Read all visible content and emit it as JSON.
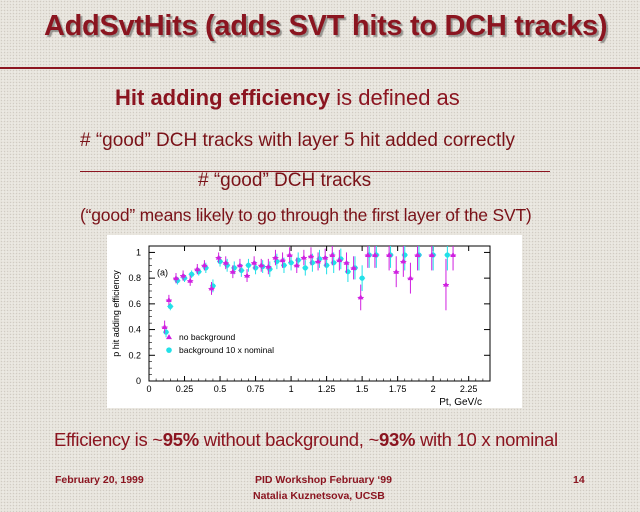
{
  "slide": {
    "title": "AddSvtHits (adds SVT hits to DCH tracks)",
    "heading_bold": "Hit adding efficiency",
    "heading_rest": " is defined as",
    "numerator": "# “good” DCH tracks with layer 5 hit added correctly",
    "denominator": "# “good” DCH tracks",
    "note": "(“good” means likely to go through the first layer of the SVT)",
    "summary_prefix": "Efficiency is ~",
    "summary_val1": "95%",
    "summary_mid": " without background, ~",
    "summary_val2": "93%",
    "summary_suffix": " with 10 x nominal"
  },
  "footer": {
    "date": "February 20, 1999",
    "workshop": "PID Workshop February ‘99",
    "author": "Natalia Kuznetsova, UCSB",
    "page": "14"
  },
  "chart_data": {
    "type": "scatter",
    "panel_label": "(a)",
    "xlabel": "Pt, GeV/c",
    "ylabel": "p hit adding efficiency",
    "xlim": [
      0,
      2.4
    ],
    "ylim": [
      0,
      1.05
    ],
    "x_ticks": [
      "0",
      "0.25",
      "0.5",
      "0.75",
      "1",
      "1.25",
      "1.5",
      "1.75",
      "2",
      "2.25"
    ],
    "y_ticks": [
      "0",
      "0.2",
      "0.4",
      "0.6",
      "0.8",
      "1"
    ],
    "legend_position": "lower-left",
    "series": [
      {
        "name": "background 10 x nominal",
        "color": "#22e0e8",
        "marker": "circle",
        "x": [
          0.12,
          0.15,
          0.2,
          0.25,
          0.3,
          0.35,
          0.4,
          0.45,
          0.5,
          0.55,
          0.6,
          0.65,
          0.7,
          0.75,
          0.8,
          0.85,
          0.9,
          0.95,
          1.0,
          1.05,
          1.1,
          1.15,
          1.2,
          1.25,
          1.3,
          1.35,
          1.4,
          1.45,
          1.5,
          1.55,
          1.6,
          1.7,
          1.8,
          1.9,
          2.0,
          2.1
        ],
        "y": [
          0.38,
          0.58,
          0.78,
          0.8,
          0.83,
          0.85,
          0.88,
          0.74,
          0.93,
          0.9,
          0.88,
          0.86,
          0.9,
          0.88,
          0.89,
          0.87,
          0.93,
          0.9,
          0.92,
          0.94,
          0.88,
          0.92,
          0.95,
          0.9,
          0.92,
          0.95,
          0.85,
          0.88,
          0.8,
          0.98,
          0.98,
          0.98,
          0.98,
          0.98,
          0.98,
          0.98
        ],
        "yerr": [
          0.04,
          0.03,
          0.03,
          0.03,
          0.03,
          0.03,
          0.04,
          0.05,
          0.04,
          0.05,
          0.05,
          0.05,
          0.05,
          0.05,
          0.05,
          0.06,
          0.06,
          0.06,
          0.06,
          0.06,
          0.06,
          0.07,
          0.07,
          0.07,
          0.08,
          0.08,
          0.08,
          0.09,
          0.1,
          0.1,
          0.1,
          0.1,
          0.12,
          0.12,
          0.12,
          0.12
        ]
      },
      {
        "name": "no background",
        "color": "#d020e0",
        "marker": "triangle",
        "x": [
          0.11,
          0.14,
          0.19,
          0.24,
          0.29,
          0.34,
          0.39,
          0.44,
          0.49,
          0.54,
          0.59,
          0.64,
          0.69,
          0.74,
          0.79,
          0.84,
          0.89,
          0.94,
          0.99,
          1.04,
          1.09,
          1.14,
          1.19,
          1.24,
          1.29,
          1.34,
          1.39,
          1.44,
          1.49,
          1.54,
          1.59,
          1.69,
          1.74,
          1.79,
          1.84,
          1.89,
          1.99,
          2.09,
          2.14
        ],
        "y": [
          0.42,
          0.63,
          0.8,
          0.82,
          0.78,
          0.87,
          0.9,
          0.72,
          0.96,
          0.92,
          0.85,
          0.9,
          0.82,
          0.92,
          0.9,
          0.89,
          0.96,
          0.94,
          0.98,
          0.9,
          0.96,
          0.97,
          0.93,
          0.96,
          0.98,
          0.94,
          0.92,
          0.88,
          0.65,
          0.98,
          0.98,
          0.98,
          0.85,
          0.93,
          0.8,
          0.98,
          0.98,
          0.75,
          0.98
        ],
        "yerr": [
          0.05,
          0.04,
          0.04,
          0.04,
          0.04,
          0.04,
          0.04,
          0.05,
          0.04,
          0.05,
          0.05,
          0.05,
          0.05,
          0.05,
          0.05,
          0.06,
          0.06,
          0.06,
          0.06,
          0.06,
          0.06,
          0.07,
          0.07,
          0.07,
          0.08,
          0.08,
          0.08,
          0.09,
          0.1,
          0.1,
          0.1,
          0.12,
          0.12,
          0.12,
          0.12,
          0.12,
          0.12,
          0.2,
          0.12
        ]
      }
    ]
  }
}
